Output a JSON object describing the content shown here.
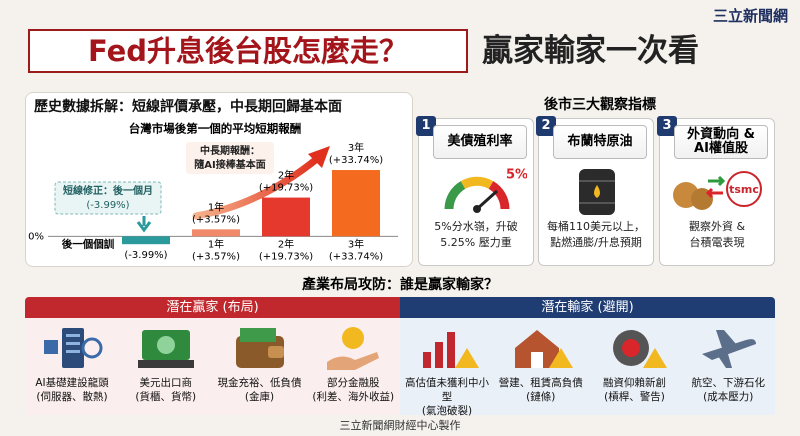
{
  "brand": "三立新聞網",
  "title": {
    "main": "Fed升息後台股怎麼走？",
    "side": "贏家輸家一次看"
  },
  "history_heading": "歷史數據拆解：短線評價承壓，中長期回歸基本面",
  "chart_data": {
    "type": "bar",
    "title": "台灣市場後第一個的平均短期報酬",
    "categories": [
      "後一個個訓",
      "1年",
      "2年",
      "3年"
    ],
    "values": [
      -3.99,
      3.57,
      19.73,
      33.74
    ],
    "value_labels": [
      "(-3.99%)",
      "(+3.57%)",
      "(+19.73%)",
      "(+33.74%)"
    ],
    "colors": [
      "#2a9a9c",
      "#f08a6a",
      "#e5392e",
      "#f46a1f"
    ],
    "ylim": [
      -10,
      48
    ],
    "yticks": [
      {
        "value": 0,
        "label": "0%"
      }
    ],
    "annotations": [
      "短線修正：後一個月",
      "(-3.99%)",
      "中長期報酬：",
      "隨AI接棒基本面"
    ]
  },
  "indicators": {
    "heading": "後市三大觀察指標",
    "cards": [
      {
        "number": "1",
        "title": [
          "美債殖利率"
        ],
        "badge": "5%",
        "desc": [
          "5%分水嶺，升破",
          "5.25% 壓力重"
        ]
      },
      {
        "number": "2",
        "title": [
          "布蘭特原油"
        ],
        "desc": [
          "每桶110美元以上，",
          "點燃通膨/升息預期"
        ]
      },
      {
        "number": "3",
        "title": [
          "外資動向 &",
          "AI權值股"
        ],
        "logo": "tsmc",
        "desc": [
          "觀察外資 &",
          "台積電表現"
        ]
      }
    ]
  },
  "industry": {
    "heading": "產業布局攻防：誰是贏家輸家？",
    "winners": {
      "label": "潛在贏家 (布局)",
      "items": [
        {
          "name": "AI基礎建設龍頭",
          "note": "(伺服器、散熱)"
        },
        {
          "name": "美元出口商",
          "note": "(貨櫃、貨幣)"
        },
        {
          "name": "現金充裕、低負債",
          "note": "(金庫)"
        },
        {
          "name": "部分金融股",
          "note": "(利差、海外收益)"
        }
      ]
    },
    "losers": {
      "label": "潛在輸家 (避開)",
      "items": [
        {
          "name": "高估值未獲利中小型",
          "note": "(氣泡破裂)"
        },
        {
          "name": "營建、租賃高負債",
          "note": "(鏈條)"
        },
        {
          "name": "融資仰賴新創",
          "note": "(槓桿、警告)"
        },
        {
          "name": "航空、下游石化",
          "note": "(成本壓力)"
        }
      ]
    }
  },
  "footer": "三立新聞網財經中心製作"
}
